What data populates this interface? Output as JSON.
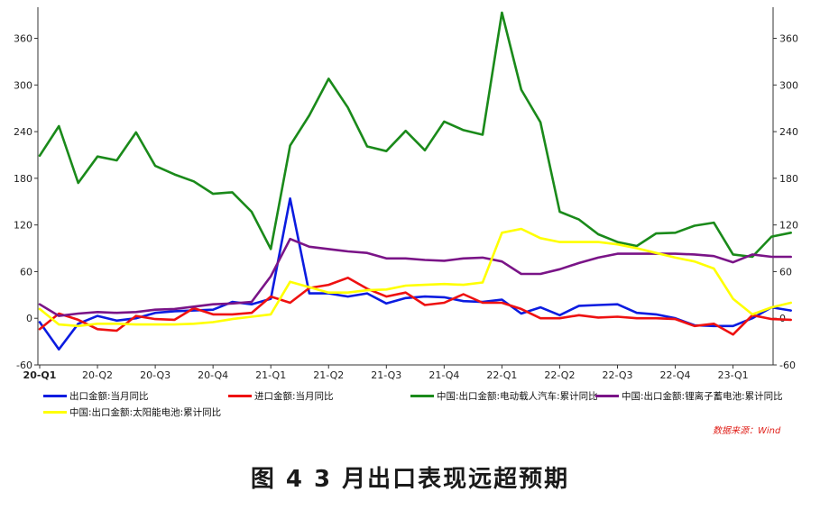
{
  "caption": "图 4   3 月出口表现远超预期",
  "source": "数据来源：Wind",
  "chart_data": {
    "type": "line",
    "ylim": [
      -60,
      400
    ],
    "yticks": [
      -60,
      0,
      60,
      120,
      180,
      240,
      300,
      360
    ],
    "categories": [
      "20-Q1",
      "20-Q2",
      "20-Q3",
      "20-Q4",
      "21-Q1",
      "21-Q2",
      "21-Q3",
      "21-Q4",
      "22-Q1",
      "22-Q2",
      "22-Q3",
      "22-Q4",
      "23-Q1"
    ],
    "x": [
      "2020-01",
      "2020-02",
      "2020-03",
      "2020-04",
      "2020-05",
      "2020-06",
      "2020-07",
      "2020-08",
      "2020-09",
      "2020-10",
      "2020-11",
      "2020-12",
      "2021-01",
      "2021-02",
      "2021-03",
      "2021-04",
      "2021-05",
      "2021-06",
      "2021-07",
      "2021-08",
      "2021-09",
      "2021-10",
      "2021-11",
      "2021-12",
      "2022-01",
      "2022-02",
      "2022-03",
      "2022-04",
      "2022-05",
      "2022-06",
      "2022-07",
      "2022-08",
      "2022-09",
      "2022-10",
      "2022-11",
      "2022-12",
      "2023-01",
      "2023-02",
      "2023-03",
      "2023-04"
    ],
    "grid": false,
    "legend_position": "bottom",
    "series": [
      {
        "name": "出口金额:当月同比",
        "color": "#0b1ce0",
        "values": [
          -5,
          -40,
          -7,
          3,
          -3,
          0,
          7,
          9,
          10,
          11,
          21,
          18,
          25,
          154,
          32,
          32,
          28,
          32,
          19,
          26,
          28,
          27,
          22,
          21,
          24,
          6,
          14,
          4,
          16,
          17,
          18,
          7,
          5,
          0,
          -9,
          -10,
          -10,
          0,
          14,
          10
        ]
      },
      {
        "name": "进口金额:当月同比",
        "color": "#ee1111",
        "values": [
          -14,
          6,
          -2,
          -14,
          -16,
          3,
          -1,
          -2,
          13,
          5,
          5,
          7,
          28,
          20,
          39,
          43,
          52,
          38,
          28,
          33,
          17,
          20,
          31,
          20,
          20,
          12,
          0,
          0,
          4,
          1,
          2,
          0,
          0,
          -1,
          -10,
          -7,
          -21,
          4,
          -1,
          -2
        ]
      },
      {
        "name": "中国:出口金额:电动载人汽车:累计同比",
        "color": "#1a8a1a",
        "values": [
          209,
          247,
          174,
          208,
          203,
          239,
          196,
          185,
          176,
          160,
          162,
          137,
          89,
          222,
          261,
          308,
          271,
          221,
          215,
          241,
          216,
          253,
          242,
          236,
          393,
          294,
          252,
          137,
          127,
          108,
          98,
          93,
          109,
          110,
          119,
          123,
          82,
          79,
          105,
          110
        ]
      },
      {
        "name": "中国:出口金额:锂离子蓄电池:累计同比",
        "color": "#7a1487",
        "values": [
          18,
          3,
          6,
          8,
          7,
          8,
          11,
          12,
          15,
          18,
          19,
          21,
          54,
          102,
          92,
          89,
          86,
          84,
          77,
          77,
          75,
          74,
          77,
          78,
          73,
          57,
          57,
          63,
          71,
          78,
          83,
          83,
          83,
          83,
          82,
          80,
          72,
          82,
          79,
          79
        ]
      },
      {
        "name": "中国:出口金额:太阳能电池:累计同比",
        "color": "#ffff00",
        "values": [
          12,
          -8,
          -10,
          -7,
          -7,
          -8,
          -8,
          -8,
          -7,
          -5,
          -1,
          2,
          5,
          47,
          40,
          33,
          33,
          36,
          37,
          42,
          43,
          44,
          43,
          46,
          110,
          115,
          103,
          98,
          98,
          98,
          95,
          90,
          84,
          78,
          73,
          64,
          25,
          5,
          14,
          20
        ]
      }
    ]
  }
}
